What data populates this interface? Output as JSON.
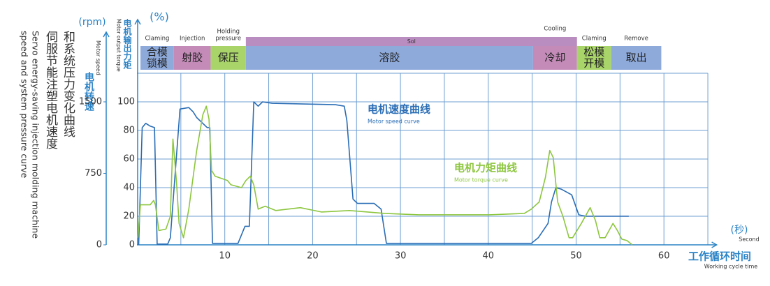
{
  "chart_data": {
    "type": "line",
    "title_lines": [
      "和系统压力变化曲线",
      "伺服节能注塑电机速度",
      "Servo energy-saving injection molding machine",
      "speed and system pressure curve"
    ],
    "y_unit": "(%)",
    "y_label": "电机输出力矩",
    "y_label_en": "Motor output torque",
    "y2_unit": "(rpm)",
    "y2_label": "电机转速",
    "y2_label_en": "Motor speed",
    "x_unit": "(秒)",
    "x_unit_en": "Second",
    "x_label": "工作循环时间",
    "x_label_en": "Working cycle time",
    "xlim": [
      0,
      66
    ],
    "xticks": [
      10,
      20,
      30,
      40,
      50,
      60
    ],
    "x_minor_ticks": [
      5,
      15,
      25,
      35,
      45,
      55,
      65
    ],
    "ylim": [
      0,
      120
    ],
    "yticks": [
      0,
      20,
      40,
      60,
      80,
      100
    ],
    "y2lim": [
      0,
      1800
    ],
    "y2ticks": [
      0,
      750,
      1500
    ],
    "grid": true,
    "series": [
      {
        "name": "电机速度曲线",
        "name_en": "Motor speed curve",
        "color": "#2a6db5",
        "axis": "y2",
        "x": [
          0.2,
          0.6,
          1.0,
          1.5,
          2.0,
          2.3,
          2.5,
          3.5,
          3.8,
          4.9,
          5.9,
          6.4,
          6.8,
          8.0,
          8.3,
          8.6,
          11.5,
          12.3,
          12.8,
          13.3,
          13.8,
          14.3,
          15.4,
          22.6,
          23.6,
          23.9,
          24.6,
          25.1,
          27.0,
          27.8,
          28.4,
          44.9,
          45.7,
          46.8,
          47.2,
          47.7,
          48.3,
          49.5,
          50.3,
          51.1,
          56.0
        ],
        "values": [
          0,
          1230,
          1275,
          1245,
          1230,
          8,
          8,
          8,
          75,
          1425,
          1440,
          1395,
          1335,
          1230,
          1230,
          15,
          15,
          195,
          195,
          1500,
          1455,
          1500,
          1485,
          1470,
          1455,
          1305,
          480,
          435,
          435,
          375,
          15,
          15,
          75,
          225,
          450,
          600,
          585,
          525,
          315,
          300,
          300
        ]
      },
      {
        "name": "电机力矩曲线",
        "name_en": "Motor torque curve",
        "color": "#8dc63f",
        "axis": "y",
        "x": [
          0.1,
          0.4,
          1.5,
          1.9,
          2.1,
          2.5,
          3.3,
          3.8,
          4.1,
          4.5,
          4.8,
          5.3,
          5.9,
          6.8,
          7.5,
          7.9,
          8.2,
          8.5,
          8.9,
          10.3,
          10.7,
          11.9,
          12.4,
          12.9,
          13.3,
          13.8,
          14.6,
          15.8,
          18.6,
          21.0,
          24.2,
          28.2,
          32.1,
          40.1,
          44.1,
          44.9,
          45.8,
          46.5,
          47.0,
          47.4,
          47.9,
          48.5,
          49.2,
          49.6,
          50.6,
          51.6,
          52.2,
          52.7,
          53.3,
          54.2,
          54.7,
          55.2,
          55.8,
          56.4
        ],
        "values": [
          5,
          28,
          28,
          31,
          28,
          10,
          11,
          20,
          74,
          44,
          15,
          5,
          25,
          66,
          91,
          97,
          88,
          52,
          48,
          45,
          42,
          40,
          45,
          48,
          42,
          25,
          27,
          24,
          26,
          23,
          24,
          22,
          21,
          21,
          22,
          25,
          30,
          47,
          66,
          61,
          30,
          20,
          5,
          5,
          15,
          26,
          17,
          5,
          5,
          15,
          10,
          4,
          3,
          0
        ]
      }
    ],
    "band": {
      "label": "Sol",
      "start": 12.4,
      "end": 50.1,
      "color": "#b98dbf"
    },
    "stages": [
      {
        "label": [
          "合模",
          "锁模"
        ],
        "top": [
          "Claming"
        ],
        "start": 0.4,
        "end": 4.2,
        "color": "#8eaadb"
      },
      {
        "label": [
          "射胶"
        ],
        "top": [
          "Injection"
        ],
        "start": 4.2,
        "end": 8.4,
        "color": "#c48bb9"
      },
      {
        "label": [
          "保压"
        ],
        "top": [
          "Holding",
          "pressure"
        ],
        "start": 8.4,
        "end": 12.4,
        "color": "#a9d46a"
      },
      {
        "label": [
          "溶胶"
        ],
        "top": [],
        "start": 12.4,
        "end": 45.1,
        "color": "#8eaadb"
      },
      {
        "label": [
          "冷却"
        ],
        "top": [
          "Cooling"
        ],
        "start": 45.1,
        "end": 50.1,
        "color": "#c48bb9"
      },
      {
        "label": [
          "松模",
          "开模"
        ],
        "top": [
          "Claming"
        ],
        "start": 50.1,
        "end": 54.0,
        "color": "#a9d46a"
      },
      {
        "label": [
          "取出"
        ],
        "top": [
          "Remove"
        ],
        "start": 54.0,
        "end": 59.7,
        "color": "#8eaadb"
      }
    ]
  }
}
